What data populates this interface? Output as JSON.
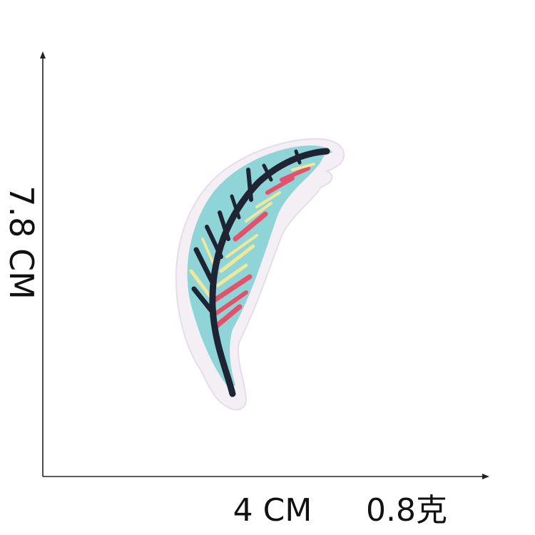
{
  "dimensions": {
    "height": "7.8 CM",
    "width": "4 CM",
    "weight": "0.8克"
  },
  "colors": {
    "patch_border": "#f4eef5",
    "feather_fill": "#8fd5d8",
    "stitch_dark": "#1e2433",
    "stitch_pink": "#e4516a",
    "stitch_yellow": "#efe79a"
  }
}
